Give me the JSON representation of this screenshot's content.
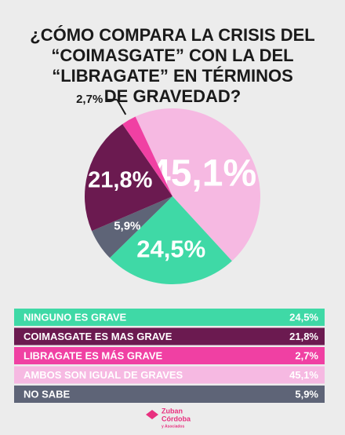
{
  "chart_data": {
    "type": "pie",
    "title": [
      "¿CÓMO COMPARA LA CRISIS DEL",
      "“COIMASGATE” CON LA DEL",
      "“LIBRAGATE” EN TÉRMINOS",
      "DE GRAVEDAD?"
    ],
    "categories": [
      "NINGUNO ES GRAVE",
      "COIMASGATE ES MAS GRAVE",
      "LIBRAGATE ES MÁS GRAVE",
      "AMBOS SON IGUAL DE GRAVES",
      "NO SABE"
    ],
    "values": [
      24.5,
      21.8,
      2.7,
      45.1,
      5.9
    ],
    "value_labels": [
      "24,5%",
      "21,8%",
      "2,7%",
      "45,1%",
      "5,9%"
    ],
    "colors": [
      "#3fd9a6",
      "#6b1a50",
      "#f040a3",
      "#f6b9e2",
      "#5e6477"
    ]
  },
  "logo": {
    "name": [
      "Zuban",
      "Córdoba"
    ],
    "sub": "y Asociados"
  }
}
